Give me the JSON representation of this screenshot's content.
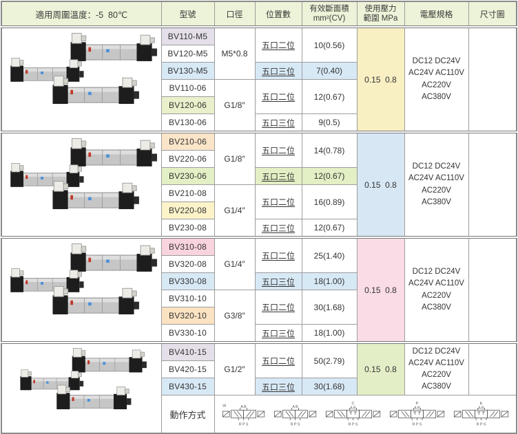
{
  "header": {
    "temp_note": "適用周圍溫度：-5  80℃",
    "col_model": "型號",
    "col_port": "口徑",
    "col_positions": "位置數",
    "col_area_line1": "有效斷面積",
    "col_area_line2": "mm²(CV)",
    "col_pressure_line1": "使用壓力",
    "col_pressure_line2": "範圍 MPa",
    "col_voltage": "電壓規格",
    "col_dimension": "尺寸圖"
  },
  "pressure_value": "0.15  0.8",
  "voltage_4line": "DC12 DC24V\nAC24V AC110V\nAC220V\nAC380V",
  "voltage_3line": "DC12 DC24V\nAC24V AC110V\nAC220V AC380V",
  "positions": {
    "five_two": "五口二位",
    "five_three": "五口三位"
  },
  "blocks": [
    {
      "models": [
        "BV110-M5",
        "BV120-M5",
        "BV130-M5",
        "BV110-06",
        "BV120-06",
        "BV130-06"
      ],
      "ports": [
        "M5*0.8",
        "G1/8″"
      ],
      "areas": [
        "10(0.56)",
        "7(0.40)",
        "12(0.67)",
        "9(0.5)"
      ]
    },
    {
      "models": [
        "BV210-06",
        "BV220-06",
        "BV230-06",
        "BV210-08",
        "BV220-08",
        "BV230-08"
      ],
      "ports": [
        "G1/8″",
        "G1/4″"
      ],
      "areas": [
        "14(0.78)",
        "12(0.67)",
        "16(0.89)",
        "12(0.67)"
      ]
    },
    {
      "models": [
        "BV310-08",
        "BV320-08",
        "BV330-08",
        "BV310-10",
        "BV320-10",
        "BV330-10"
      ],
      "ports": [
        "G1/4″",
        "G3/8″"
      ],
      "areas": [
        "25(1.40)",
        "18(1.00)",
        "30(1.68)",
        "18(1.00)"
      ]
    },
    {
      "models": [
        "BV410-15",
        "BV420-15",
        "BV430-15"
      ],
      "ports": [
        "G1/2″"
      ],
      "areas": [
        "50(2.79)",
        "30(1.68)"
      ]
    }
  ],
  "action_row": {
    "label": "動作方式",
    "symbols": [
      {
        "letter": "",
        "side": "W",
        "top": "A B",
        "bottom": "R P S",
        "positions": 2
      },
      {
        "letter": "",
        "side": "",
        "top": "A B",
        "bottom": "R P S",
        "positions": 2
      },
      {
        "letter": "C",
        "side": "",
        "top": "A B",
        "bottom": "R P S",
        "positions": 3
      },
      {
        "letter": "P",
        "side": "",
        "top": "A B",
        "bottom": "R P S",
        "positions": 3
      },
      {
        "letter": "E",
        "side": "",
        "top": "A B",
        "bottom": "R P S",
        "positions": 3
      }
    ]
  },
  "colors": {
    "header_bg": "#edf3d8",
    "highlight_lavender": "#e5dfe9",
    "highlight_blue": "#d8e9f6",
    "highlight_green": "#eaf0cb",
    "highlight_green2": "#e3efc4",
    "highlight_peach": "#fbe5c9",
    "highlight_yellow": "#fcf3c9",
    "highlight_pink": "#f9d3de",
    "highlight_orange": "#fbe3c2",
    "pressure_yellow": "#f8efc3",
    "pressure_blue": "#d7e7f4",
    "pressure_pink": "#f9dce6",
    "pressure_green": "#e4eec6",
    "border_gray": "#9c9c9c"
  }
}
